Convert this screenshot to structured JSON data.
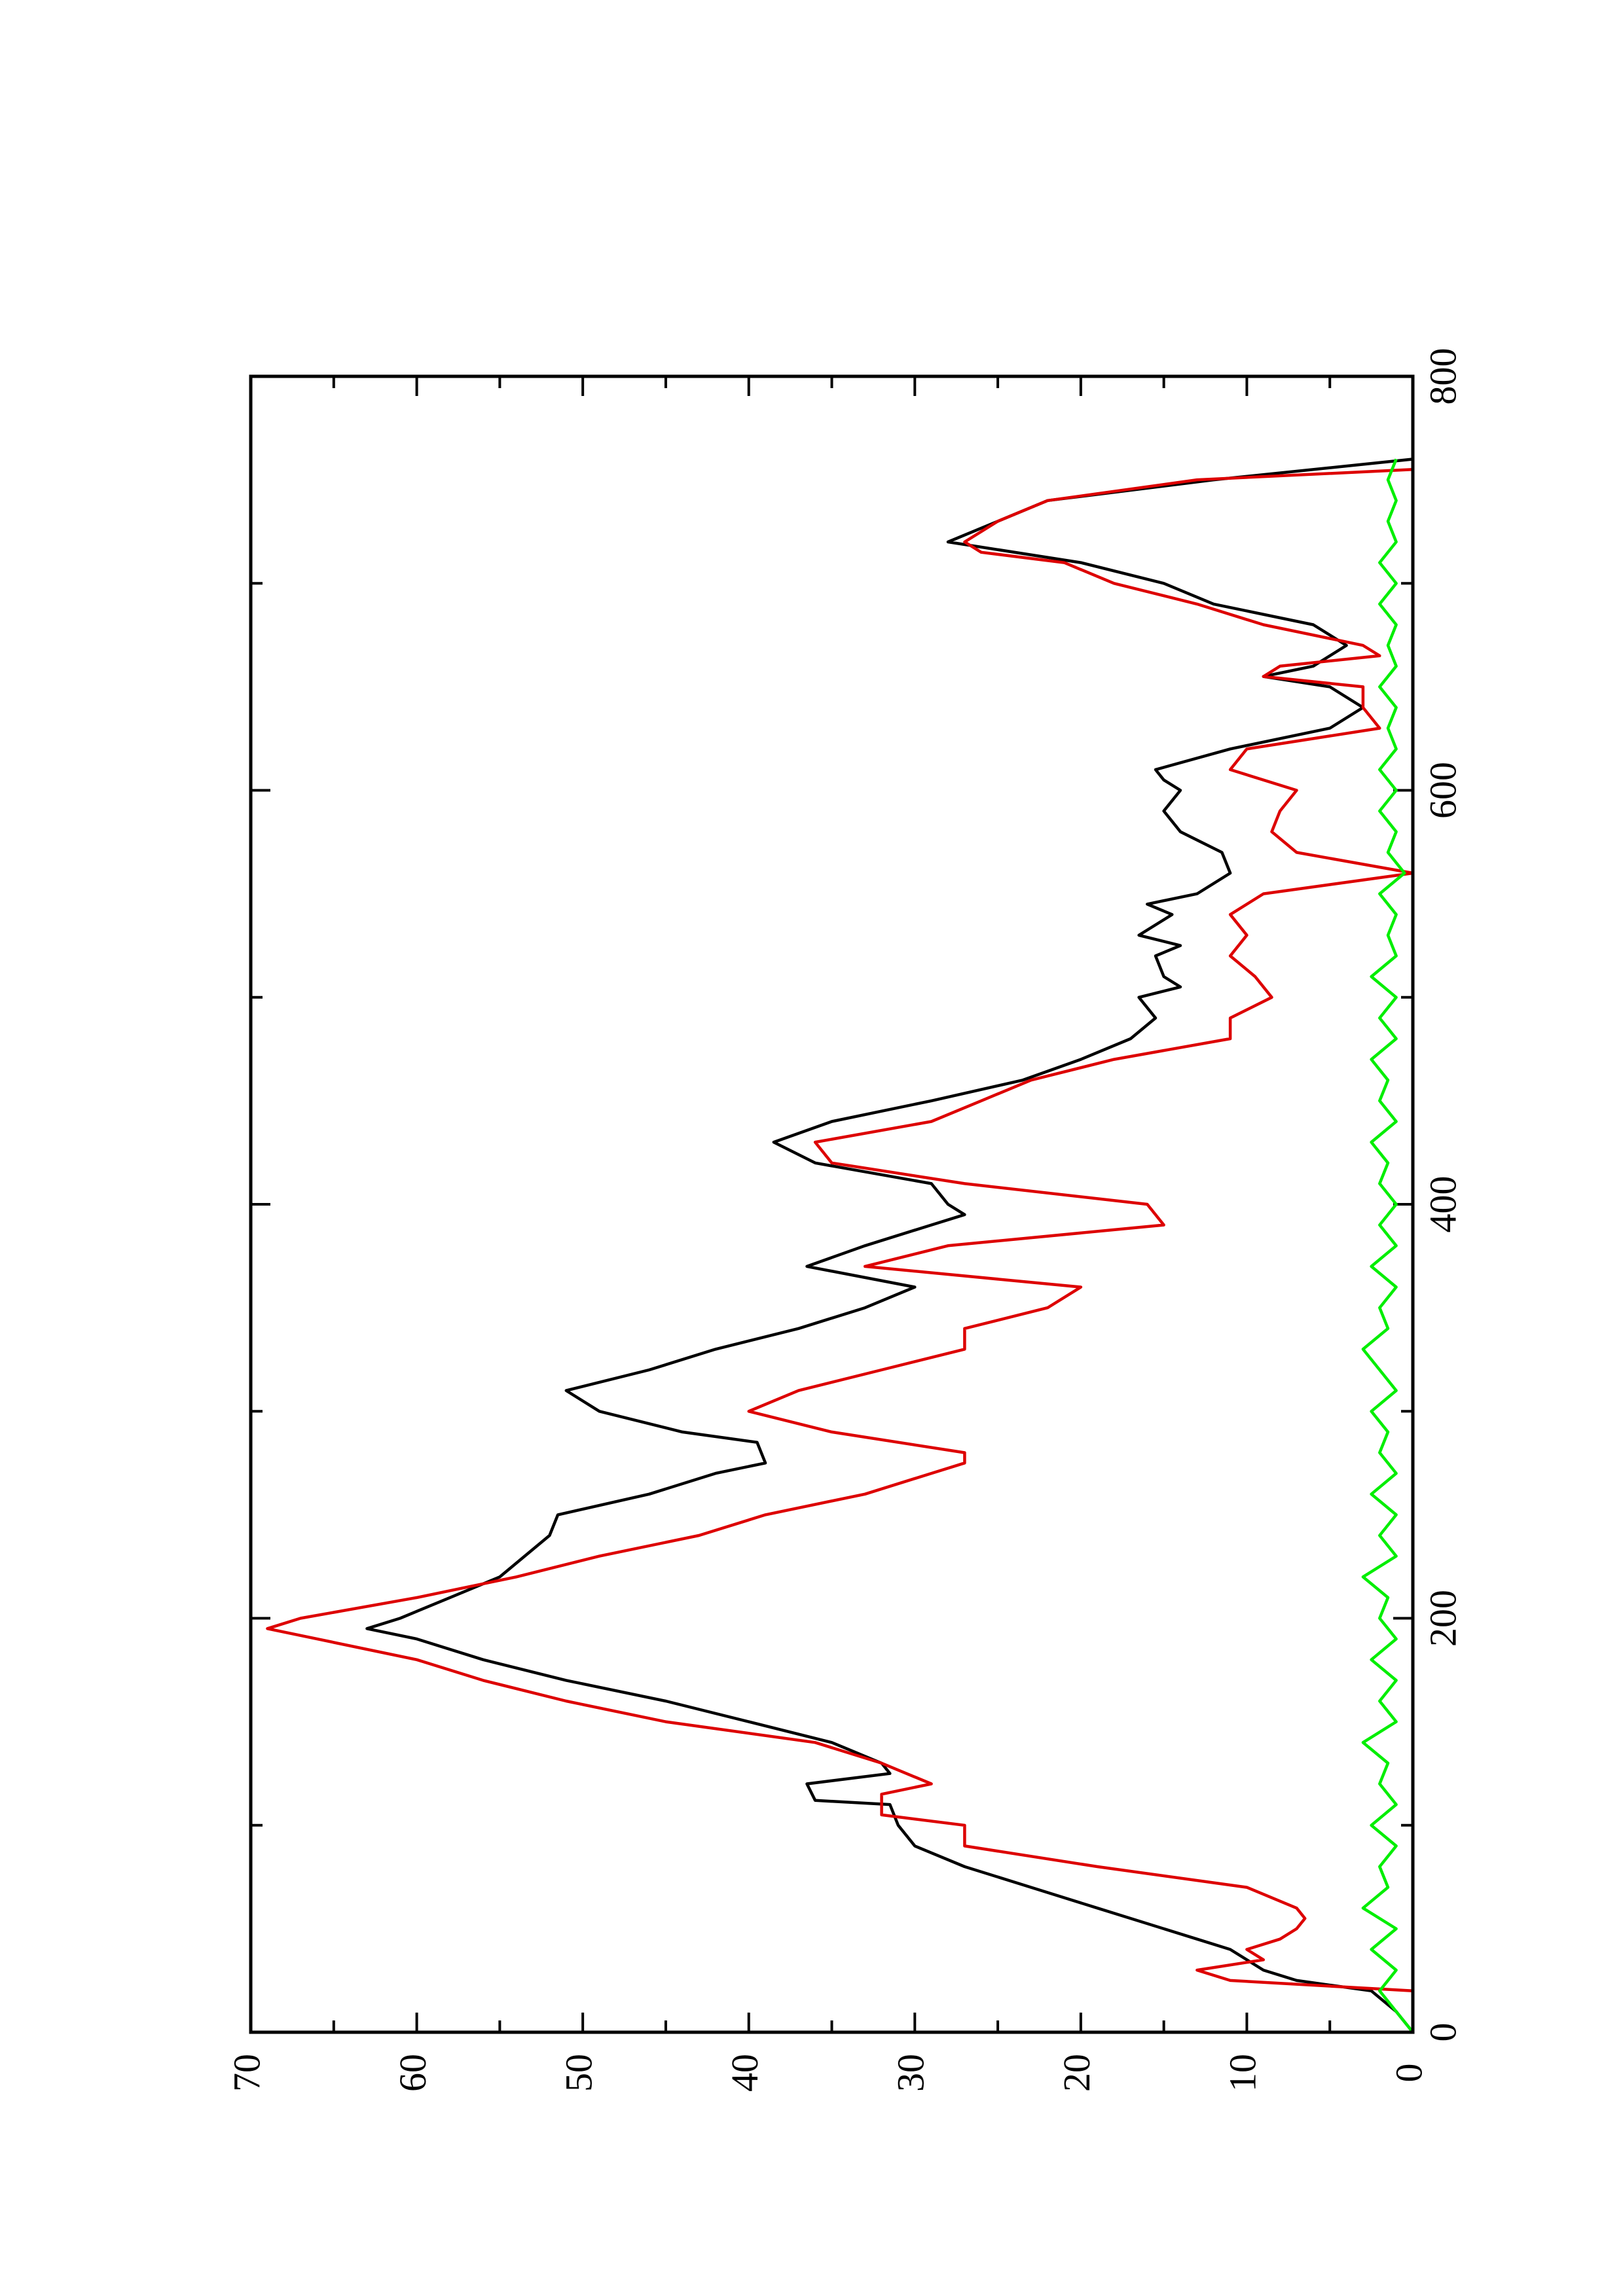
{
  "chart_data": {
    "type": "line",
    "orientation": "rotated-90-ccw",
    "title": "",
    "xlabel": "",
    "ylabel": "",
    "xlim": [
      0,
      800
    ],
    "ylim": [
      0,
      70
    ],
    "x_ticks": [
      0,
      200,
      400,
      600,
      800
    ],
    "y_ticks": [
      0,
      10,
      20,
      30,
      40,
      50,
      60,
      70
    ],
    "grid": false,
    "legend": "none",
    "series": [
      {
        "color": "#000000",
        "points": [
          [
            0,
            0
          ],
          [
            10,
            1
          ],
          [
            20,
            2.5
          ],
          [
            25,
            7
          ],
          [
            30,
            9
          ],
          [
            40,
            11
          ],
          [
            45,
            13
          ],
          [
            60,
            19
          ],
          [
            70,
            23
          ],
          [
            80,
            27
          ],
          [
            90,
            30
          ],
          [
            100,
            31
          ],
          [
            110,
            31.5
          ],
          [
            112,
            36
          ],
          [
            120,
            36.5
          ],
          [
            125,
            31.5
          ],
          [
            130,
            32
          ],
          [
            140,
            35
          ],
          [
            150,
            40
          ],
          [
            160,
            45
          ],
          [
            170,
            51
          ],
          [
            180,
            56
          ],
          [
            190,
            60
          ],
          [
            195,
            63
          ],
          [
            200,
            61
          ],
          [
            210,
            58
          ],
          [
            220,
            55
          ],
          [
            230,
            53.5
          ],
          [
            240,
            52
          ],
          [
            250,
            51.5
          ],
          [
            260,
            46
          ],
          [
            270,
            42
          ],
          [
            275,
            39
          ],
          [
            285,
            39.5
          ],
          [
            290,
            44
          ],
          [
            300,
            49
          ],
          [
            310,
            51
          ],
          [
            320,
            46
          ],
          [
            330,
            42
          ],
          [
            340,
            37
          ],
          [
            350,
            33
          ],
          [
            360,
            30
          ],
          [
            370,
            36.5
          ],
          [
            380,
            33
          ],
          [
            390,
            29
          ],
          [
            395,
            27
          ],
          [
            400,
            28
          ],
          [
            410,
            29
          ],
          [
            420,
            36
          ],
          [
            430,
            38.5
          ],
          [
            440,
            35
          ],
          [
            450,
            29
          ],
          [
            460,
            23.5
          ],
          [
            470,
            20
          ],
          [
            480,
            17
          ],
          [
            490,
            15.5
          ],
          [
            500,
            16.5
          ],
          [
            505,
            14
          ],
          [
            510,
            15
          ],
          [
            520,
            15.5
          ],
          [
            525,
            14
          ],
          [
            530,
            16.5
          ],
          [
            540,
            14.5
          ],
          [
            545,
            16
          ],
          [
            550,
            13
          ],
          [
            560,
            11
          ],
          [
            570,
            11.5
          ],
          [
            580,
            14
          ],
          [
            590,
            15
          ],
          [
            600,
            14
          ],
          [
            605,
            15
          ],
          [
            610,
            15.5
          ],
          [
            620,
            11
          ],
          [
            630,
            5
          ],
          [
            640,
            3
          ],
          [
            650,
            5
          ],
          [
            655,
            9
          ],
          [
            660,
            6
          ],
          [
            670,
            4
          ],
          [
            680,
            6
          ],
          [
            690,
            12
          ],
          [
            700,
            15
          ],
          [
            710,
            20
          ],
          [
            720,
            28
          ],
          [
            730,
            25
          ],
          [
            740,
            22
          ],
          [
            750,
            12
          ],
          [
            760,
            0
          ]
        ]
      },
      {
        "color": "#dd0000",
        "points": [
          [
            0,
            0
          ],
          [
            20,
            0
          ],
          [
            25,
            11
          ],
          [
            30,
            13
          ],
          [
            35,
            9
          ],
          [
            40,
            10
          ],
          [
            45,
            8
          ],
          [
            50,
            7
          ],
          [
            55,
            6.5
          ],
          [
            60,
            7
          ],
          [
            70,
            10
          ],
          [
            80,
            19
          ],
          [
            90,
            27
          ],
          [
            100,
            27
          ],
          [
            105,
            32
          ],
          [
            115,
            32
          ],
          [
            120,
            29
          ],
          [
            130,
            32
          ],
          [
            140,
            36
          ],
          [
            150,
            45
          ],
          [
            160,
            51
          ],
          [
            170,
            56
          ],
          [
            180,
            60
          ],
          [
            190,
            66
          ],
          [
            195,
            69
          ],
          [
            200,
            67
          ],
          [
            210,
            60
          ],
          [
            220,
            54
          ],
          [
            230,
            49
          ],
          [
            240,
            43
          ],
          [
            250,
            39
          ],
          [
            260,
            33
          ],
          [
            270,
            29
          ],
          [
            275,
            27
          ],
          [
            280,
            27
          ],
          [
            290,
            35
          ],
          [
            300,
            40
          ],
          [
            310,
            37
          ],
          [
            320,
            32
          ],
          [
            330,
            27
          ],
          [
            340,
            27
          ],
          [
            350,
            22
          ],
          [
            360,
            20
          ],
          [
            370,
            33
          ],
          [
            380,
            28
          ],
          [
            390,
            15
          ],
          [
            400,
            16
          ],
          [
            410,
            27
          ],
          [
            420,
            35
          ],
          [
            430,
            36
          ],
          [
            440,
            29
          ],
          [
            450,
            26
          ],
          [
            460,
            23
          ],
          [
            470,
            18
          ],
          [
            480,
            11
          ],
          [
            490,
            11
          ],
          [
            500,
            8.5
          ],
          [
            510,
            9.5
          ],
          [
            520,
            11
          ],
          [
            530,
            10
          ],
          [
            540,
            11
          ],
          [
            550,
            9
          ],
          [
            560,
            0
          ],
          [
            570,
            7
          ],
          [
            580,
            8.5
          ],
          [
            590,
            8
          ],
          [
            600,
            7
          ],
          [
            610,
            11
          ],
          [
            620,
            10
          ],
          [
            630,
            2
          ],
          [
            640,
            3
          ],
          [
            650,
            3
          ],
          [
            655,
            9
          ],
          [
            660,
            8
          ],
          [
            665,
            2
          ],
          [
            670,
            3
          ],
          [
            680,
            9
          ],
          [
            690,
            13
          ],
          [
            700,
            18
          ],
          [
            710,
            21
          ],
          [
            715,
            26
          ],
          [
            720,
            27
          ],
          [
            730,
            25
          ],
          [
            740,
            22
          ],
          [
            750,
            13
          ],
          [
            755,
            0
          ]
        ]
      },
      {
        "color": "#00ee00",
        "points": [
          [
            0,
            0
          ],
          [
            10,
            1
          ],
          [
            20,
            2
          ],
          [
            30,
            1
          ],
          [
            40,
            2.5
          ],
          [
            50,
            1
          ],
          [
            60,
            3
          ],
          [
            70,
            1.5
          ],
          [
            80,
            2
          ],
          [
            90,
            1
          ],
          [
            100,
            2.5
          ],
          [
            110,
            1
          ],
          [
            120,
            2
          ],
          [
            130,
            1.5
          ],
          [
            140,
            3
          ],
          [
            150,
            1
          ],
          [
            160,
            2
          ],
          [
            170,
            1
          ],
          [
            180,
            2.5
          ],
          [
            190,
            1
          ],
          [
            200,
            2
          ],
          [
            210,
            1.5
          ],
          [
            220,
            3
          ],
          [
            230,
            1
          ],
          [
            240,
            2
          ],
          [
            250,
            1
          ],
          [
            260,
            2.5
          ],
          [
            270,
            1
          ],
          [
            280,
            2
          ],
          [
            290,
            1.5
          ],
          [
            300,
            2.5
          ],
          [
            310,
            1
          ],
          [
            320,
            2
          ],
          [
            330,
            3
          ],
          [
            340,
            1.5
          ],
          [
            350,
            2
          ],
          [
            360,
            1
          ],
          [
            370,
            2.5
          ],
          [
            380,
            1
          ],
          [
            390,
            2
          ],
          [
            400,
            1
          ],
          [
            410,
            2
          ],
          [
            420,
            1.5
          ],
          [
            430,
            2.5
          ],
          [
            440,
            1
          ],
          [
            450,
            2
          ],
          [
            460,
            1.5
          ],
          [
            470,
            2.5
          ],
          [
            480,
            1
          ],
          [
            490,
            2
          ],
          [
            500,
            1
          ],
          [
            510,
            2.5
          ],
          [
            520,
            1
          ],
          [
            530,
            1.5
          ],
          [
            540,
            1
          ],
          [
            550,
            2
          ],
          [
            560,
            0.5
          ],
          [
            570,
            1.5
          ],
          [
            580,
            1
          ],
          [
            590,
            2
          ],
          [
            600,
            1
          ],
          [
            610,
            2
          ],
          [
            620,
            1
          ],
          [
            630,
            1.5
          ],
          [
            640,
            1
          ],
          [
            650,
            2
          ],
          [
            660,
            1
          ],
          [
            670,
            1.5
          ],
          [
            680,
            1
          ],
          [
            690,
            2
          ],
          [
            700,
            1
          ],
          [
            710,
            2
          ],
          [
            720,
            1
          ],
          [
            730,
            1.5
          ],
          [
            740,
            1
          ],
          [
            750,
            1.5
          ],
          [
            760,
            1
          ]
        ]
      }
    ]
  }
}
